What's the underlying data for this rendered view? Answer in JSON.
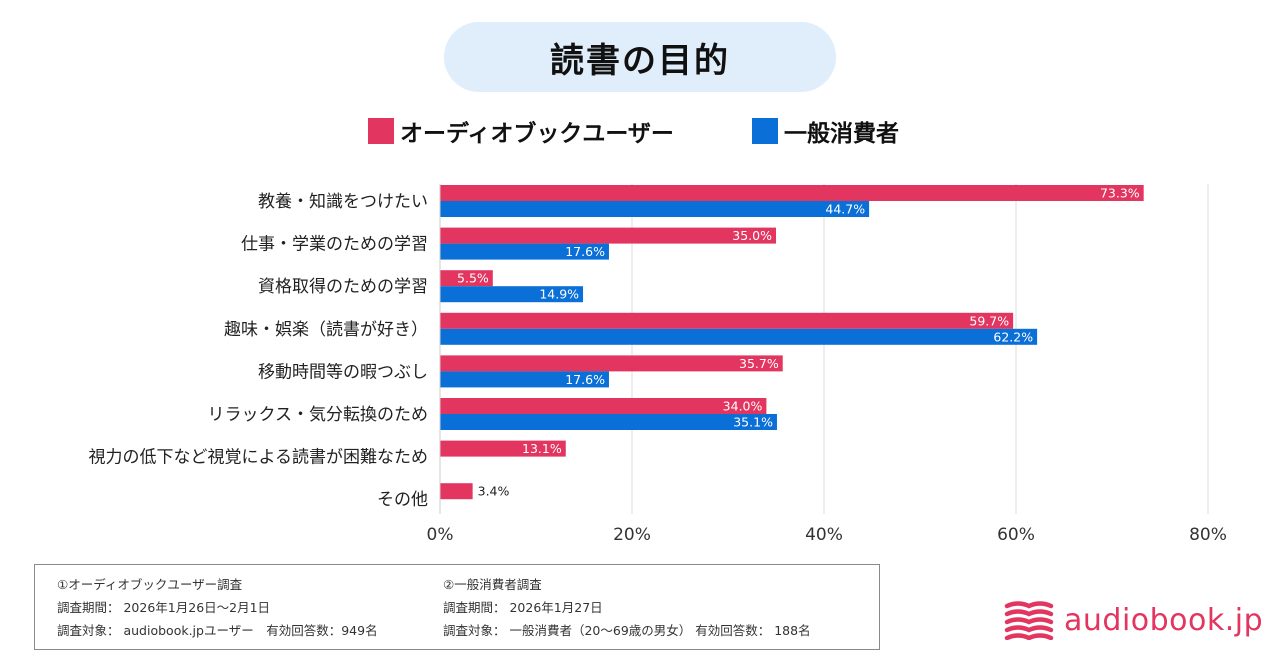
{
  "header": {
    "title": "読書の目的"
  },
  "colors": {
    "audiobook": "#e23560",
    "general": "#0a6fd6",
    "title_bg": "#dfeefa",
    "grid": "#dddddd"
  },
  "chart_data": {
    "type": "bar",
    "orientation": "horizontal",
    "title": "読書の目的",
    "categories": [
      "教養・知識をつけたい",
      "仕事・学業のための学習",
      "資格取得のための学習",
      "趣味・娯楽（読書が好き）",
      "移動時間等の暇つぶし",
      "リラックス・気分転換のため",
      "視力の低下など視覚による読書が困難なため",
      "その他"
    ],
    "series": [
      {
        "name": "オーディオブックユーザー",
        "color": "#e23560",
        "values": [
          73.3,
          35.0,
          5.5,
          59.7,
          35.7,
          34.0,
          13.1,
          3.4
        ]
      },
      {
        "name": "一般消費者",
        "color": "#0a6fd6",
        "values": [
          44.7,
          17.6,
          14.9,
          62.2,
          17.6,
          35.1,
          null,
          null
        ]
      }
    ],
    "xlim": [
      0,
      80
    ],
    "xticks": [
      "0%",
      "20%",
      "40%",
      "60%",
      "80%"
    ],
    "grid": true,
    "legend_position": "top"
  },
  "notes": {
    "survey1": {
      "title": "①オーディオブックユーザー調査",
      "period": "調査期間： 2026年1月26日〜2月1日",
      "target": "調査対象： audiobook.jpユーザー　有効回答数：949名"
    },
    "survey2": {
      "title": "②一般消費者調査",
      "period": "調査期間： 2026年1月27日",
      "target": "調査対象： 一般消費者（20〜69歳の男女）  有効回答数： 188名"
    }
  },
  "logo": {
    "text": "audiobook.jp",
    "icon": "audiobook-logo-icon"
  }
}
